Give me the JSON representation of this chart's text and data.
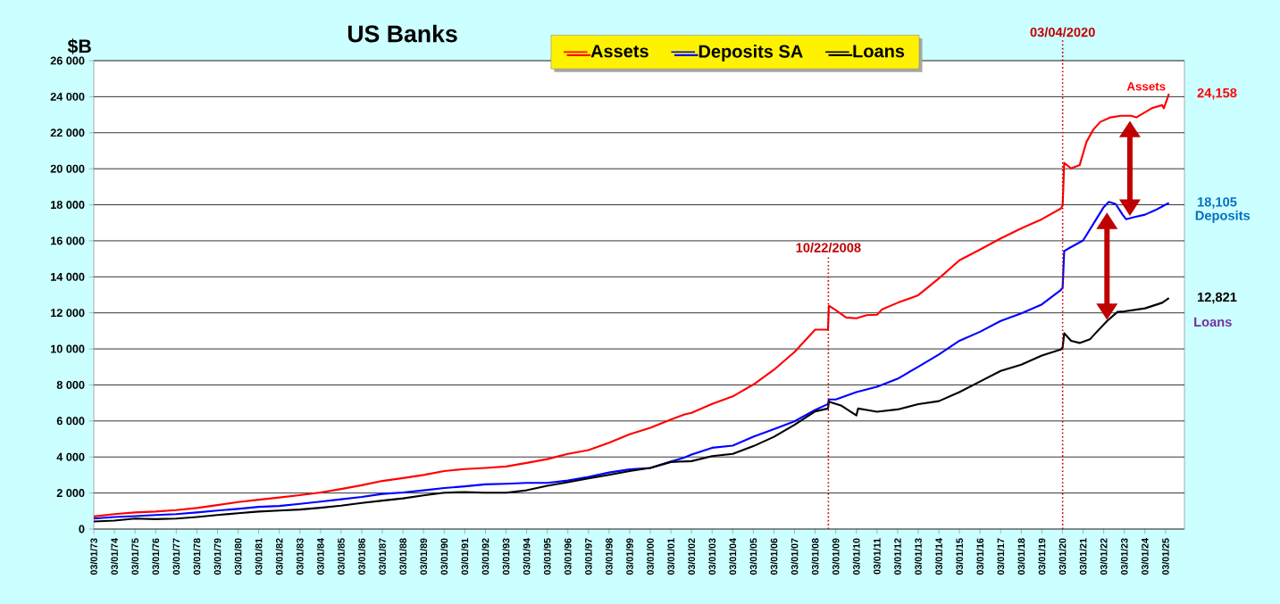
{
  "chart_data": {
    "type": "line",
    "title": "US Banks",
    "ylabel": "$B",
    "xlim": [
      "1973-03-01",
      "2026-02-01"
    ],
    "ylim": [
      0,
      26000
    ],
    "yticks": [
      0,
      {
        "value": 2000,
        "label": "2 000"
      },
      {
        "value": 4000,
        "label": "4 000"
      },
      {
        "value": 6000,
        "label": "6 000"
      },
      {
        "value": 8000,
        "label": "8 000"
      },
      {
        "value": 10000,
        "label": "10 000"
      },
      {
        "value": 12000,
        "label": "12 000"
      },
      {
        "value": 14000,
        "label": "14 000"
      },
      {
        "value": 16000,
        "label": "16 000"
      },
      {
        "value": 18000,
        "label": "18 000"
      },
      {
        "value": 20000,
        "label": "20 000"
      },
      {
        "value": 22000,
        "label": "22 000"
      },
      {
        "value": 24000,
        "label": "24 000"
      },
      {
        "value": 26000,
        "label": "26 000"
      }
    ],
    "xticks": [
      {
        "value": "1973-03-01",
        "label": "03/01/73"
      },
      {
        "value": "1974-03-01",
        "label": "03/01/74"
      },
      {
        "value": "1975-03-01",
        "label": "03/01/75"
      },
      {
        "value": "1976-03-01",
        "label": "03/01/76"
      },
      {
        "value": "1977-03-01",
        "label": "03/01/77"
      },
      {
        "value": "1978-03-01",
        "label": "03/01/78"
      },
      {
        "value": "1979-03-01",
        "label": "03/01/79"
      },
      {
        "value": "1980-03-01",
        "label": "03/01/80"
      },
      {
        "value": "1981-03-01",
        "label": "03/01/81"
      },
      {
        "value": "1982-03-01",
        "label": "03/01/82"
      },
      {
        "value": "1983-03-01",
        "label": "03/01/83"
      },
      {
        "value": "1984-03-01",
        "label": "03/01/84"
      },
      {
        "value": "1985-03-01",
        "label": "03/01/85"
      },
      {
        "value": "1986-03-01",
        "label": "03/01/86"
      },
      {
        "value": "1987-03-01",
        "label": "03/01/87"
      },
      {
        "value": "1988-03-01",
        "label": "03/01/88"
      },
      {
        "value": "1989-03-01",
        "label": "03/01/89"
      },
      {
        "value": "1990-03-01",
        "label": "03/01/90"
      },
      {
        "value": "1991-03-01",
        "label": "03/01/91"
      },
      {
        "value": "1992-03-01",
        "label": "03/01/92"
      },
      {
        "value": "1993-03-01",
        "label": "03/01/93"
      },
      {
        "value": "1994-03-01",
        "label": "03/01/94"
      },
      {
        "value": "1995-03-01",
        "label": "03/01/95"
      },
      {
        "value": "1996-03-01",
        "label": "03/01/96"
      },
      {
        "value": "1997-03-01",
        "label": "03/01/97"
      },
      {
        "value": "1998-03-01",
        "label": "03/01/98"
      },
      {
        "value": "1999-03-01",
        "label": "03/01/99"
      },
      {
        "value": "2000-03-01",
        "label": "03/01/00"
      },
      {
        "value": "2001-03-01",
        "label": "03/01/01"
      },
      {
        "value": "2002-03-01",
        "label": "03/01/02"
      },
      {
        "value": "2003-03-01",
        "label": "03/01/03"
      },
      {
        "value": "2004-03-01",
        "label": "03/01/04"
      },
      {
        "value": "2005-03-01",
        "label": "03/01/05"
      },
      {
        "value": "2006-03-01",
        "label": "03/01/06"
      },
      {
        "value": "2007-03-01",
        "label": "03/01/07"
      },
      {
        "value": "2008-03-01",
        "label": "03/01/08"
      },
      {
        "value": "2009-03-01",
        "label": "03/01/09"
      },
      {
        "value": "2010-03-01",
        "label": "03/01/10"
      },
      {
        "value": "2011-03-01",
        "label": "03/01/11"
      },
      {
        "value": "2012-03-01",
        "label": "03/01/12"
      },
      {
        "value": "2013-03-01",
        "label": "03/01/13"
      },
      {
        "value": "2014-03-01",
        "label": "03/01/14"
      },
      {
        "value": "2015-03-01",
        "label": "03/01/15"
      },
      {
        "value": "2016-03-01",
        "label": "03/01/16"
      },
      {
        "value": "2017-03-01",
        "label": "03/01/17"
      },
      {
        "value": "2018-03-01",
        "label": "03/01/18"
      },
      {
        "value": "2019-03-01",
        "label": "03/01/19"
      },
      {
        "value": "2020-03-01",
        "label": "03/01/20"
      },
      {
        "value": "2021-03-01",
        "label": "03/01/21"
      },
      {
        "value": "2022-03-01",
        "label": "03/01/22"
      },
      {
        "value": "2023-03-01",
        "label": "03/01/23"
      },
      {
        "value": "2024-03-01",
        "label": "03/01/24"
      },
      {
        "value": "2025-03-01",
        "label": "03/01/25"
      }
    ],
    "grid": "y",
    "legend": "top",
    "marker": "none",
    "line_style": "solid",
    "series": [
      {
        "name": "Assets",
        "color": "#ff0000",
        "x": [
          "1973-03",
          "1974-03",
          "1975-03",
          "1976-03",
          "1977-03",
          "1978-03",
          "1979-03",
          "1980-03",
          "1981-03",
          "1982-03",
          "1983-03",
          "1984-03",
          "1985-03",
          "1986-03",
          "1987-03",
          "1988-03",
          "1989-03",
          "1990-03",
          "1991-03",
          "1992-03",
          "1993-03",
          "1994-03",
          "1995-03",
          "1996-03",
          "1997-03",
          "1998-03",
          "1999-03",
          "2000-03",
          "2001-03",
          "2001-11",
          "2002-03",
          "2003-03",
          "2004-03",
          "2005-03",
          "2006-03",
          "2007-03",
          "2008-03",
          "2008-10-15",
          "2008-11",
          "2009-03",
          "2009-09",
          "2010-03",
          "2010-09",
          "2011-03",
          "2011-06",
          "2012-03",
          "2013-03",
          "2014-03",
          "2015-03",
          "2016-03",
          "2017-03",
          "2018-03",
          "2019-03",
          "2020-02",
          "2020-03-04",
          "2020-04",
          "2020-08",
          "2021-01",
          "2021-05",
          "2021-09",
          "2022-01",
          "2022-07",
          "2023-01",
          "2023-07",
          "2023-10",
          "2024-01",
          "2024-07",
          "2025-01",
          "2025-02",
          "2025-05"
        ],
        "values": [
          700,
          830,
          920,
          970,
          1050,
          1170,
          1330,
          1500,
          1630,
          1750,
          1880,
          2030,
          2220,
          2430,
          2670,
          2830,
          3000,
          3220,
          3330,
          3390,
          3470,
          3670,
          3880,
          4170,
          4380,
          4790,
          5260,
          5620,
          6080,
          6360,
          6450,
          6940,
          7360,
          8020,
          8840,
          9830,
          11070,
          11070,
          12400,
          12150,
          11740,
          11700,
          11870,
          11900,
          12200,
          12560,
          12980,
          13910,
          14920,
          15510,
          16130,
          16690,
          17200,
          17790,
          17960,
          20320,
          20020,
          20200,
          21500,
          22180,
          22600,
          22850,
          22940,
          22940,
          22850,
          23020,
          23360,
          23530,
          23360,
          24158
        ]
      },
      {
        "name": "Deposits SA",
        "color": "#0000ff",
        "x": [
          "1973-03",
          "1974-03",
          "1975-03",
          "1976-03",
          "1977-03",
          "1978-03",
          "1979-03",
          "1980-03",
          "1981-03",
          "1982-03",
          "1983-03",
          "1984-03",
          "1985-03",
          "1986-03",
          "1987-03",
          "1988-03",
          "1989-03",
          "1990-03",
          "1991-03",
          "1992-03",
          "1993-03",
          "1994-03",
          "1995-03",
          "1996-03",
          "1997-03",
          "1998-03",
          "1999-03",
          "2000-03",
          "2001-03",
          "2001-11",
          "2002-03",
          "2003-03",
          "2004-03",
          "2005-03",
          "2006-03",
          "2007-03",
          "2008-03",
          "2008-10-15",
          "2008-11",
          "2009-03",
          "2010-03",
          "2011-03",
          "2012-03",
          "2013-03",
          "2014-03",
          "2015-03",
          "2016-03",
          "2017-03",
          "2018-03",
          "2019-03",
          "2020-02",
          "2020-03-04",
          "2020-04",
          "2020-07",
          "2021-03",
          "2021-09",
          "2022-03",
          "2022-06",
          "2022-10",
          "2023-02",
          "2023-04",
          "2023-09",
          "2024-03",
          "2024-09",
          "2025-01",
          "2025-05"
        ],
        "values": [
          580,
          670,
          720,
          780,
          830,
          920,
          1030,
          1120,
          1230,
          1280,
          1400,
          1520,
          1650,
          1780,
          1950,
          2030,
          2150,
          2280,
          2370,
          2480,
          2510,
          2560,
          2560,
          2690,
          2890,
          3140,
          3310,
          3390,
          3750,
          3970,
          4130,
          4510,
          4630,
          5120,
          5540,
          5980,
          6610,
          6940,
          7190,
          7190,
          7600,
          7900,
          8340,
          9010,
          9690,
          10450,
          10950,
          11550,
          11970,
          12470,
          13270,
          13400,
          15430,
          15600,
          16020,
          16940,
          17870,
          18160,
          18040,
          17450,
          17200,
          17320,
          17450,
          17700,
          17900,
          18105
        ]
      },
      {
        "name": "Loans",
        "color": "#000000",
        "x": [
          "1973-03",
          "1974-03",
          "1975-03",
          "1976-03",
          "1977-03",
          "1978-03",
          "1979-03",
          "1980-03",
          "1981-03",
          "1982-03",
          "1983-03",
          "1984-03",
          "1985-03",
          "1986-03",
          "1987-03",
          "1988-03",
          "1989-03",
          "1990-03",
          "1991-03",
          "1992-03",
          "1993-03",
          "1994-03",
          "1995-03",
          "1996-03",
          "1997-03",
          "1998-03",
          "1999-03",
          "2000-03",
          "2001-03",
          "2002-03",
          "2003-03",
          "2004-03",
          "2005-03",
          "2006-03",
          "2007-03",
          "2008-03",
          "2008-10-15",
          "2008-11",
          "2009-06",
          "2010-03",
          "2010-04",
          "2010-09",
          "2011-03",
          "2012-03",
          "2013-03",
          "2014-03",
          "2015-03",
          "2016-03",
          "2017-03",
          "2018-03",
          "2019-03",
          "2020-02",
          "2020-03-04",
          "2020-04",
          "2020-08",
          "2021-01",
          "2021-07",
          "2021-11",
          "2022-05",
          "2022-11",
          "2023-03",
          "2024-03",
          "2025-01",
          "2025-05"
        ],
        "values": [
          420,
          470,
          580,
          550,
          580,
          670,
          780,
          880,
          970,
          1030,
          1080,
          1180,
          1300,
          1450,
          1580,
          1700,
          1870,
          2020,
          2050,
          2020,
          2020,
          2150,
          2400,
          2600,
          2810,
          3010,
          3220,
          3390,
          3720,
          3770,
          4050,
          4170,
          4600,
          5120,
          5790,
          6530,
          6690,
          7070,
          6860,
          6310,
          6690,
          6610,
          6510,
          6640,
          6930,
          7100,
          7600,
          8190,
          8780,
          9120,
          9630,
          9970,
          10080,
          10870,
          10450,
          10330,
          10530,
          10950,
          11550,
          12050,
          12080,
          12250,
          12560,
          12821
        ]
      }
    ],
    "ref_lines": [
      {
        "axis": "x",
        "value": "2008-10-22",
        "label": "10/22/2008",
        "color": "#c00000",
        "line_style": "dotted"
      },
      {
        "axis": "x",
        "value": "2020-03-04",
        "label": "03/04/2020",
        "color": "#c00000",
        "line_style": "dotted"
      }
    ],
    "annotations": [
      "Assets",
      {
        "text": "24,158",
        "x": "2025-05",
        "y": 24158
      },
      {
        "text": "18,105",
        "x": "2025-05",
        "y": 18105
      },
      "Deposits",
      {
        "text": "12,821",
        "x": "2025-05",
        "y": 12821
      },
      "Loans"
    ]
  }
}
